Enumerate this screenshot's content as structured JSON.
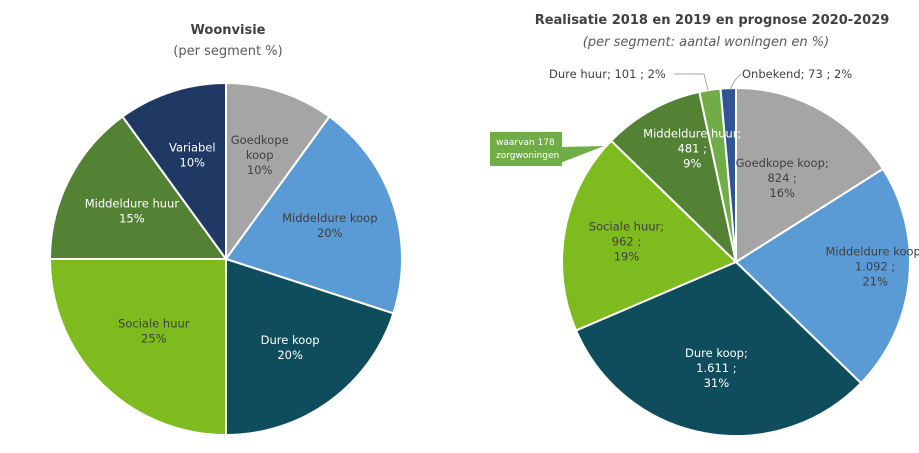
{
  "chart_data": [
    {
      "type": "pie",
      "title": "Woonvisie",
      "subtitle": "(per segment %)",
      "slices": [
        {
          "name": "Goedkope koop",
          "value": 10,
          "label_lines": [
            "Goedkope",
            "koop",
            "10%"
          ],
          "color": "#a5a5a5",
          "text_color": "#404040"
        },
        {
          "name": "Middeldure koop",
          "value": 20,
          "label_lines": [
            "Middeldure koop",
            "20%"
          ],
          "color": "#5b9bd5",
          "text_color": "#404040"
        },
        {
          "name": "Dure koop",
          "value": 20,
          "label_lines": [
            "Dure koop",
            "20%"
          ],
          "color": "#0f4d5c",
          "text_color": "#ffffff"
        },
        {
          "name": "Sociale huur",
          "value": 25,
          "label_lines": [
            "Sociale huur",
            "25%"
          ],
          "color": "#7dbb1f",
          "text_color": "#404040"
        },
        {
          "name": "Middeldure huur",
          "value": 15,
          "label_lines": [
            "Middeldure huur",
            "15%"
          ],
          "color": "#548235",
          "text_color": "#ffffff"
        },
        {
          "name": "Variabel",
          "value": 10,
          "label_lines": [
            "Variabel",
            "10%"
          ],
          "color": "#203864",
          "text_color": "#ffffff"
        }
      ]
    },
    {
      "type": "pie",
      "title": "Realisatie 2018 en 2019 en prognose 2020-2029",
      "subtitle": "(per segment: aantal woningen en %)",
      "slices": [
        {
          "name": "Goedkope koop",
          "value": 824,
          "percent": 16,
          "label_lines": [
            "Goedkope koop;",
            "824 ;",
            "16%"
          ],
          "color": "#a5a5a5",
          "text_color": "#404040"
        },
        {
          "name": "Middeldure koop",
          "value": 1092,
          "percent": 21,
          "label_lines": [
            "Middeldure koop;",
            "1.092 ;",
            "21%"
          ],
          "color": "#5b9bd5",
          "text_color": "#404040"
        },
        {
          "name": "Dure koop",
          "value": 1611,
          "percent": 31,
          "label_lines": [
            "Dure koop;",
            "1.611 ;",
            "31%"
          ],
          "color": "#0f4d5c",
          "text_color": "#ffffff"
        },
        {
          "name": "Sociale huur",
          "value": 962,
          "percent": 19,
          "label_lines": [
            "Sociale huur;",
            "962 ;",
            "19%"
          ],
          "color": "#7dbb1f",
          "text_color": "#404040"
        },
        {
          "name": "Middeldure huur",
          "value": 481,
          "percent": 9,
          "label_lines": [
            "Middeldure huur;",
            "481 ;",
            "9%"
          ],
          "color": "#548235",
          "text_color": "#ffffff"
        },
        {
          "name": "Dure huur",
          "value": 101,
          "percent": 2,
          "label_lines": [
            "Dure huur;  101 ; 2%"
          ],
          "color": "#70ad47",
          "text_color": "#404040",
          "external": true
        },
        {
          "name": "Onbekend",
          "value": 73,
          "percent": 2,
          "label_lines": [
            "Onbekend;  73 ; 2%"
          ],
          "color": "#2f5597",
          "text_color": "#404040",
          "external": true
        }
      ],
      "callout": {
        "lines": [
          "waarvan 178",
          "zorgwoningen"
        ],
        "color": "#70ad47"
      }
    }
  ]
}
